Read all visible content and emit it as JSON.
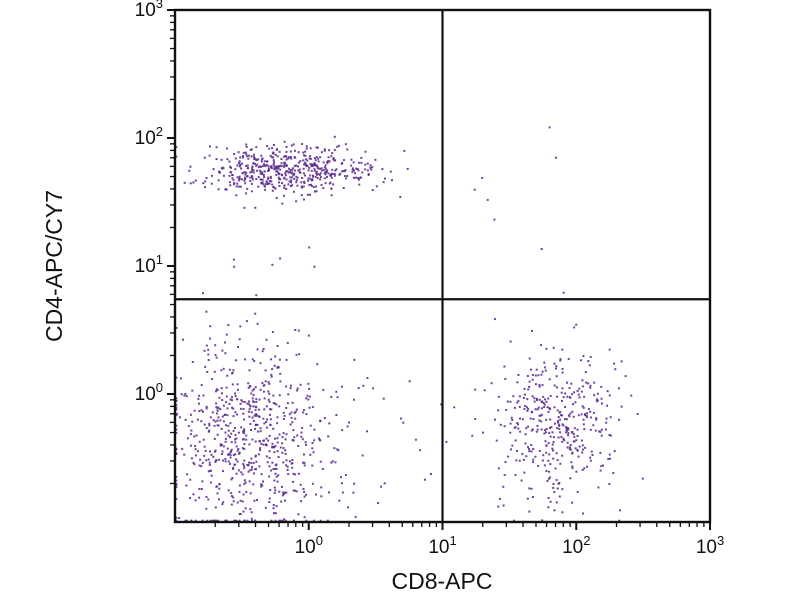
{
  "figure": {
    "background_color": "#ffffff",
    "dot_color": "#5b2a8e",
    "axis_color": "#111111"
  },
  "chart_data": {
    "type": "scatter",
    "title": "",
    "xlabel": "CD8-APC",
    "ylabel": "CD4-APC/CY7",
    "x_scale": "log",
    "y_scale": "log",
    "xlim": [
      0.1,
      1000
    ],
    "ylim": [
      0.1,
      1000
    ],
    "grid": false,
    "legend": "none",
    "x_ticks": [
      {
        "value": 1,
        "base": "10",
        "exp": "0"
      },
      {
        "value": 10,
        "base": "10",
        "exp": "1"
      },
      {
        "value": 100,
        "base": "10",
        "exp": "2"
      },
      {
        "value": 1000,
        "base": "10",
        "exp": "3"
      }
    ],
    "y_ticks": [
      {
        "value": 1,
        "base": "10",
        "exp": "0"
      },
      {
        "value": 10,
        "base": "10",
        "exp": "1"
      },
      {
        "value": 100,
        "base": "10",
        "exp": "2"
      },
      {
        "value": 1000,
        "base": "10",
        "exp": "3"
      }
    ],
    "quadrant_gates": {
      "x_gate": 10,
      "y_gate": 5.5
    },
    "seed": 42,
    "populations": [
      {
        "name": "CD4+CD8- band",
        "quadrant": "upper-left",
        "count": 520,
        "x_log_mean": -0.18,
        "x_log_sd": 0.33,
        "y_log_mean": 1.75,
        "y_log_sd": 0.09
      },
      {
        "name": "CD4-CD8- double negative",
        "quadrant": "lower-left",
        "count": 680,
        "x_log_mean": -0.45,
        "x_log_sd": 0.3,
        "y_log_mean": -0.35,
        "y_log_sd": 0.4
      },
      {
        "name": "CD4-CD8+ cluster",
        "quadrant": "lower-right",
        "count": 400,
        "x_log_mean": 1.85,
        "x_log_sd": 0.22,
        "y_log_mean": -0.22,
        "y_log_sd": 0.3
      },
      {
        "name": "upper-right sparse",
        "quadrant": "upper-right",
        "count": 8,
        "x_log_mean": 1.62,
        "x_log_sd": 0.25,
        "y_log_mean": 1.25,
        "y_log_sd": 0.3
      },
      {
        "name": "upper-left sparse",
        "quadrant": "upper-left",
        "count": 9,
        "x_log_mean": -0.35,
        "x_log_sd": 0.4,
        "y_log_mean": 1.05,
        "y_log_sd": 0.28
      },
      {
        "name": "lower debris scatter",
        "quadrant": "lower",
        "count": 45,
        "x_log_mean": 0.4,
        "x_log_sd": 0.5,
        "y_log_mean": -0.4,
        "y_log_sd": 0.35
      }
    ]
  }
}
